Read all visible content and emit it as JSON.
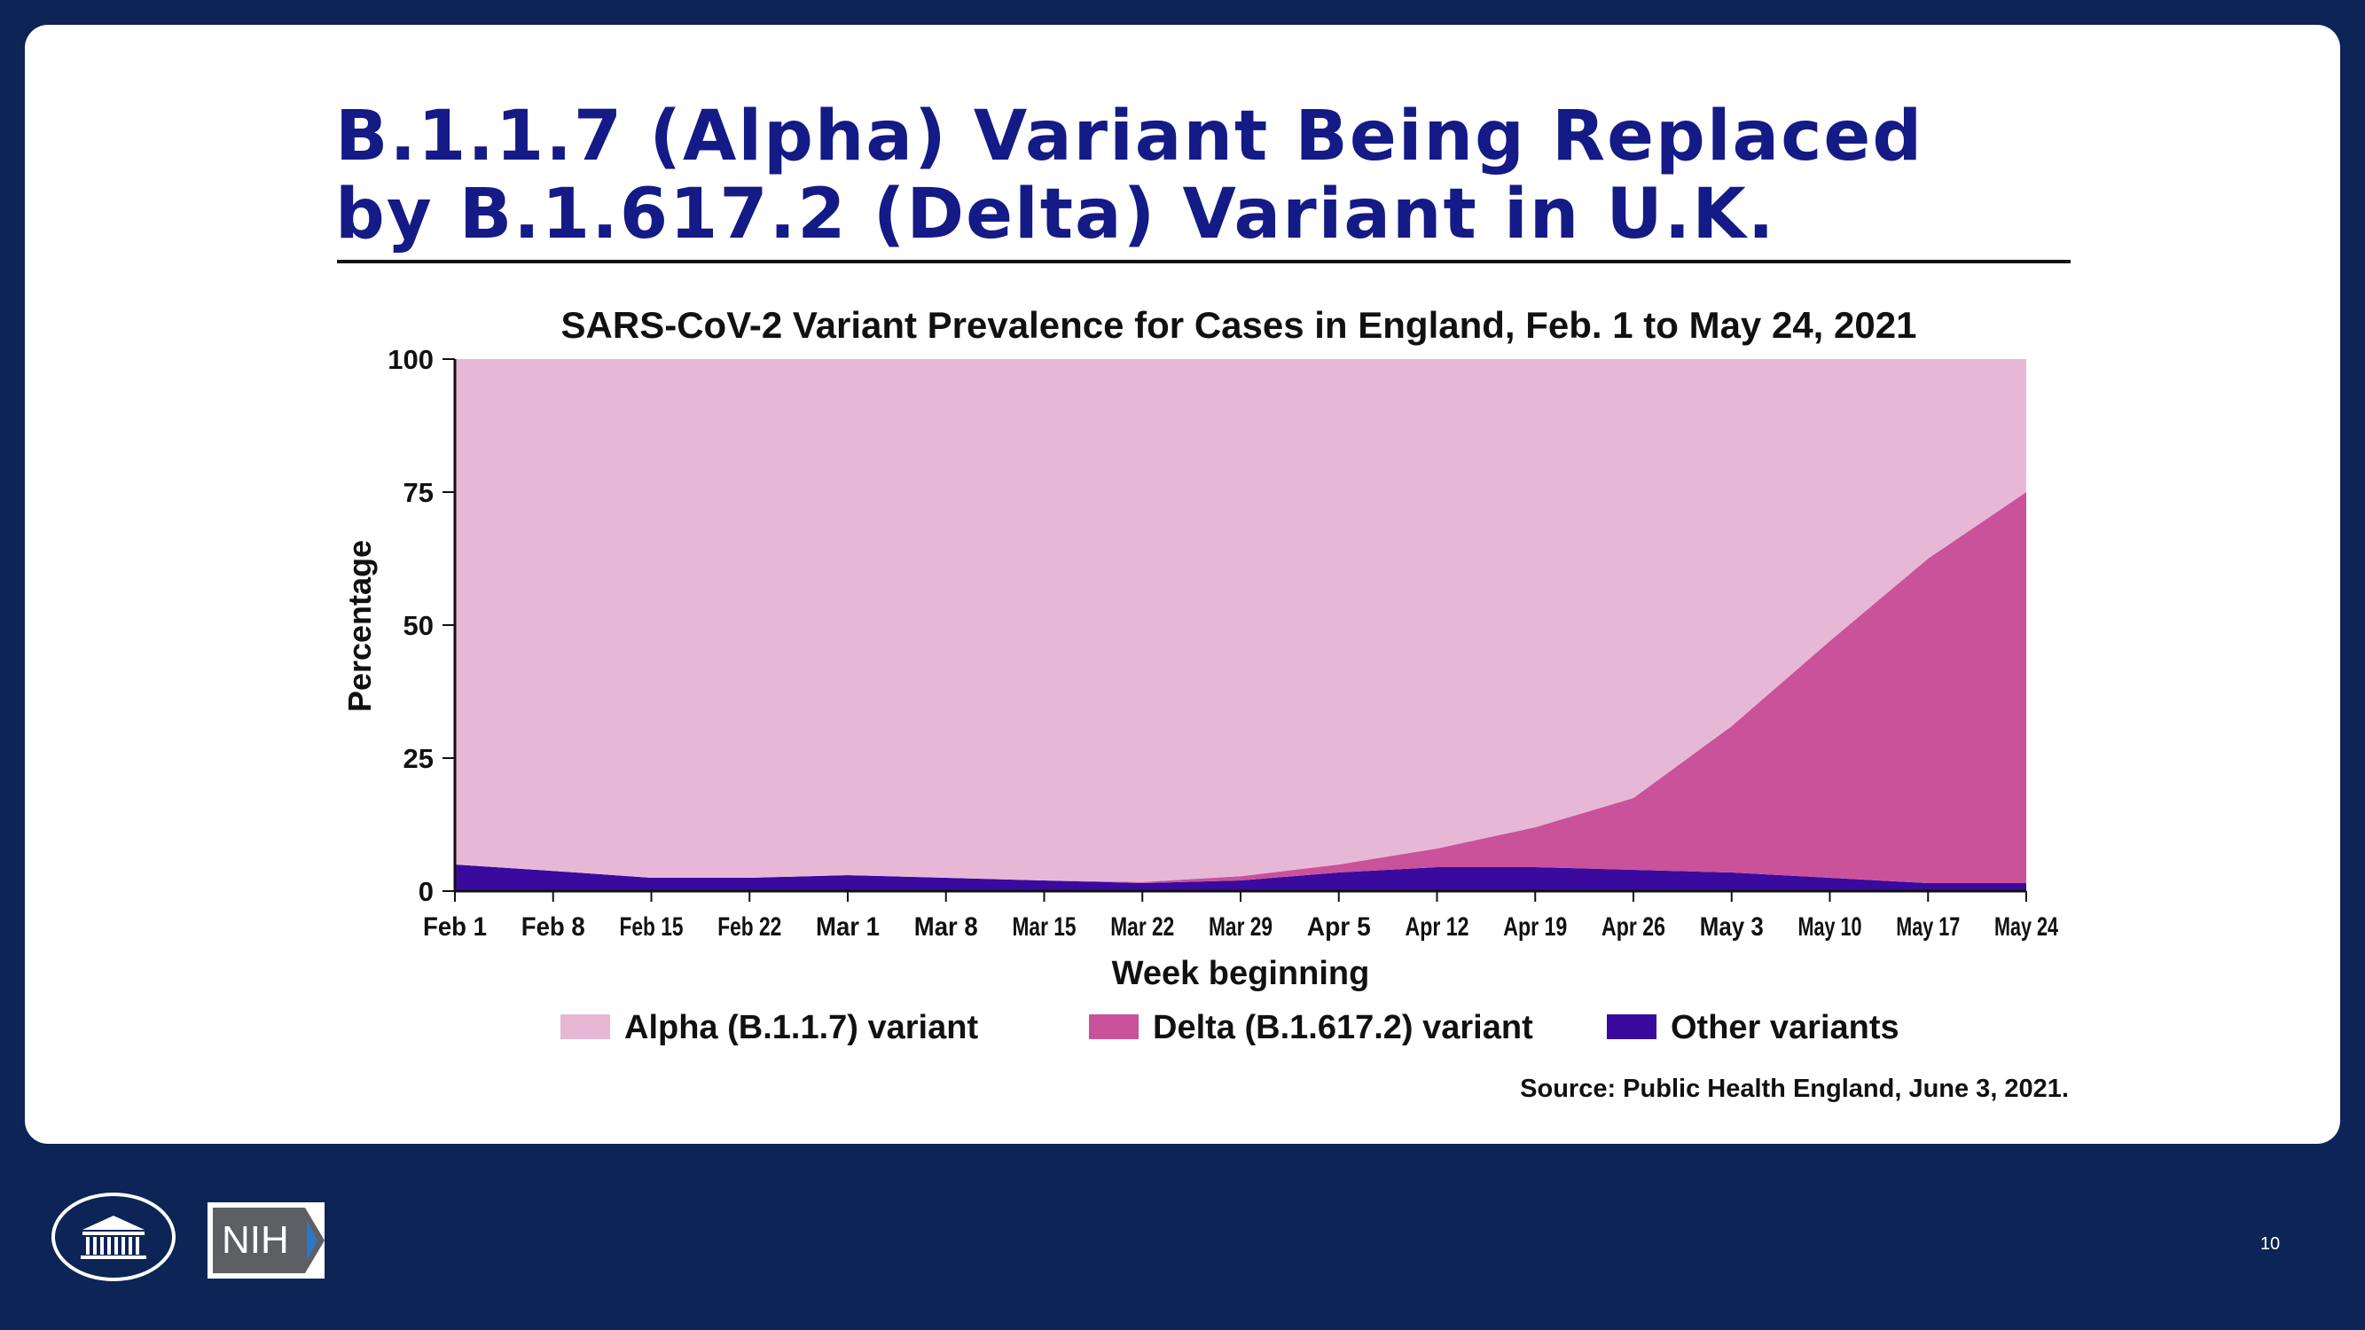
{
  "slide": {
    "title_line1": "B.1.1.7 (Alpha) Variant Being Replaced",
    "title_line2": "by B.1.617.2 (Delta) Variant in U.K.",
    "source": "Source: Public Health England, June 3, 2021.",
    "page_number": "10",
    "logo_text": "NIH"
  },
  "colors": {
    "background": "#0c2556",
    "title": "#141a86",
    "alpha": "#e6b8d6",
    "delta": "#c9529a",
    "other": "#3a0a9e"
  },
  "chart_data": {
    "type": "area",
    "stacked": true,
    "title": "SARS-CoV-2 Variant Prevalence for Cases in England, Feb. 1 to May 24, 2021",
    "xlabel": "Week beginning",
    "ylabel": "Percentage",
    "ylim": [
      0,
      100
    ],
    "yticks": [
      0,
      25,
      50,
      75,
      100
    ],
    "categories": [
      "Feb 1",
      "Feb 8",
      "Feb 15",
      "Feb 22",
      "Mar 1",
      "Mar 8",
      "Mar 15",
      "Mar 22",
      "Mar 29",
      "Apr 5",
      "Apr 12",
      "Apr 19",
      "Apr 26",
      "May 3",
      "May 10",
      "May 17",
      "May 24"
    ],
    "series": [
      {
        "name": "Other variants",
        "color": "#3a0a9e",
        "values": [
          5,
          3.8,
          2.5,
          2.5,
          3,
          2.5,
          2,
          1.5,
          2,
          3.5,
          4.5,
          4.5,
          4,
          3.5,
          2.5,
          1.5,
          1.5
        ]
      },
      {
        "name": "Delta (B.1.617.2) variant",
        "color": "#c9529a",
        "values": [
          0,
          0,
          0,
          0,
          0,
          0,
          0,
          0.2,
          0.8,
          1.5,
          3.5,
          7.5,
          13.5,
          27.5,
          44.5,
          61,
          73.5
        ]
      },
      {
        "name": "Alpha (B.1.1.7) variant",
        "color": "#e6b8d6",
        "values": [
          95,
          96.2,
          97.5,
          97.5,
          97,
          97.5,
          98,
          98.3,
          97.2,
          95,
          92,
          88,
          82.5,
          69,
          53,
          37.5,
          25
        ]
      }
    ],
    "legend": {
      "position": "bottom",
      "order": [
        "Alpha (B.1.1.7) variant",
        "Delta (B.1.617.2) variant",
        "Other variants"
      ]
    }
  }
}
